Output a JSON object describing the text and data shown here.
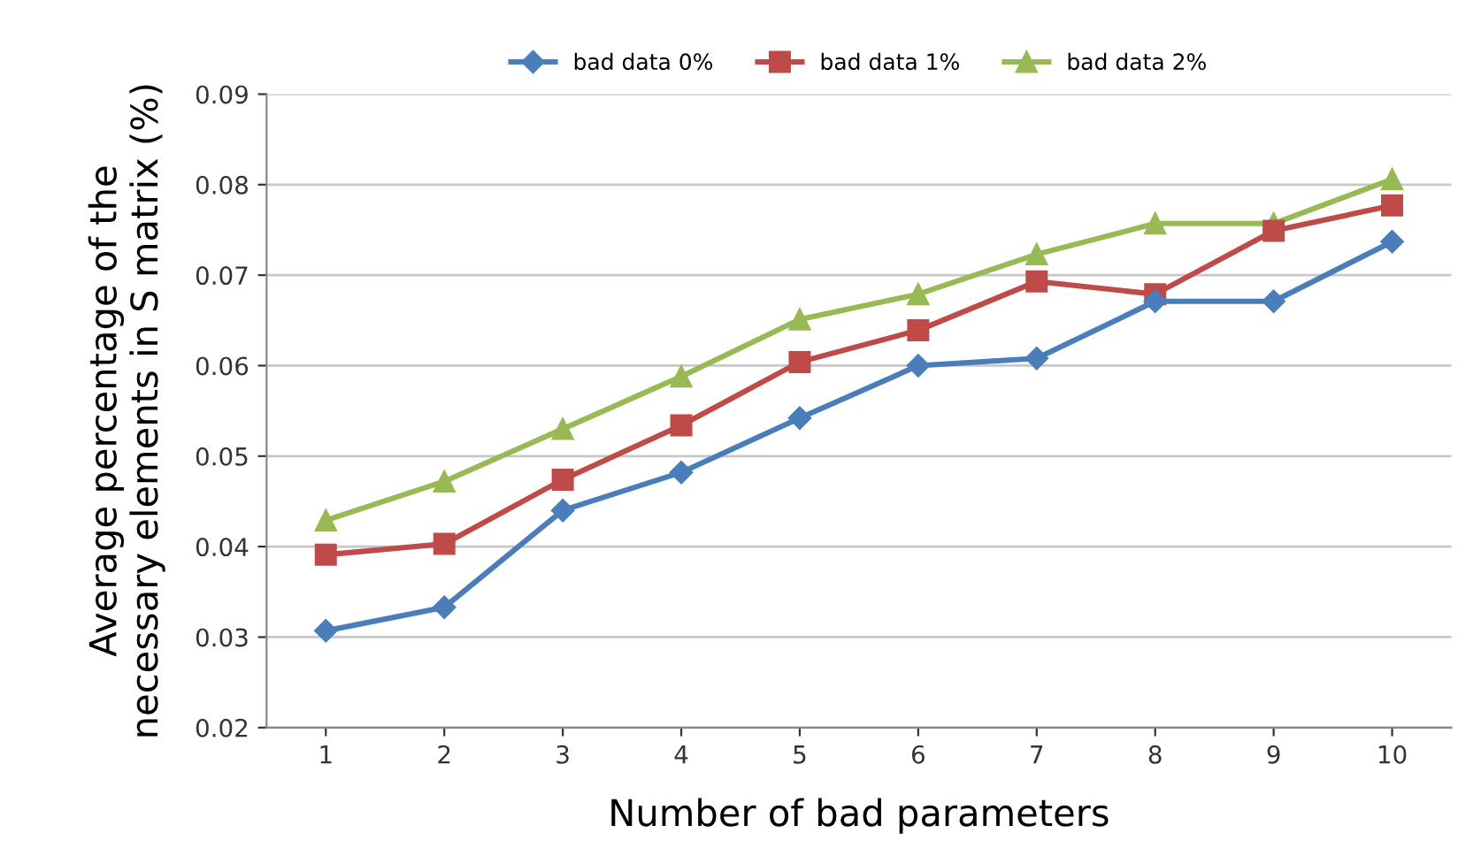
{
  "chart_data": {
    "type": "line",
    "xlabel": "Number of bad parameters",
    "ylabel": "Average percentage of the\nnecessary elements in S matrix (%)",
    "categories": [
      "1",
      "2",
      "3",
      "4",
      "5",
      "6",
      "7",
      "8",
      "9",
      "10"
    ],
    "ylim": [
      0.02,
      0.09
    ],
    "yticks": [
      {
        "value": 0.02,
        "label": "0.02"
      },
      {
        "value": 0.03,
        "label": "0.03"
      },
      {
        "value": 0.04,
        "label": "0.04"
      },
      {
        "value": 0.05,
        "label": "0.05"
      },
      {
        "value": 0.06,
        "label": "0.06"
      },
      {
        "value": 0.07,
        "label": "0.07"
      },
      {
        "value": 0.08,
        "label": "0.08"
      },
      {
        "value": 0.09,
        "label": "0.09"
      }
    ],
    "grid": "y",
    "legend": "top",
    "line_style": "solid",
    "series": [
      {
        "name": "bad data 0%",
        "color": "#4a7ebb",
        "marker": "diamond",
        "values": [
          0.0307,
          0.0333,
          0.044,
          0.0482,
          0.0542,
          0.06,
          0.0608,
          0.0671,
          0.0671,
          0.0737
        ]
      },
      {
        "name": "bad data 1%",
        "color": "#be4b48",
        "marker": "square",
        "values": [
          0.0391,
          0.0403,
          0.0474,
          0.0534,
          0.0604,
          0.0639,
          0.0693,
          0.0679,
          0.0749,
          0.0777
        ]
      },
      {
        "name": "bad data 2%",
        "color": "#98b954",
        "marker": "triangle",
        "values": [
          0.0429,
          0.0472,
          0.053,
          0.0588,
          0.0651,
          0.0679,
          0.0723,
          0.0757,
          0.0757,
          0.0806
        ]
      }
    ]
  }
}
